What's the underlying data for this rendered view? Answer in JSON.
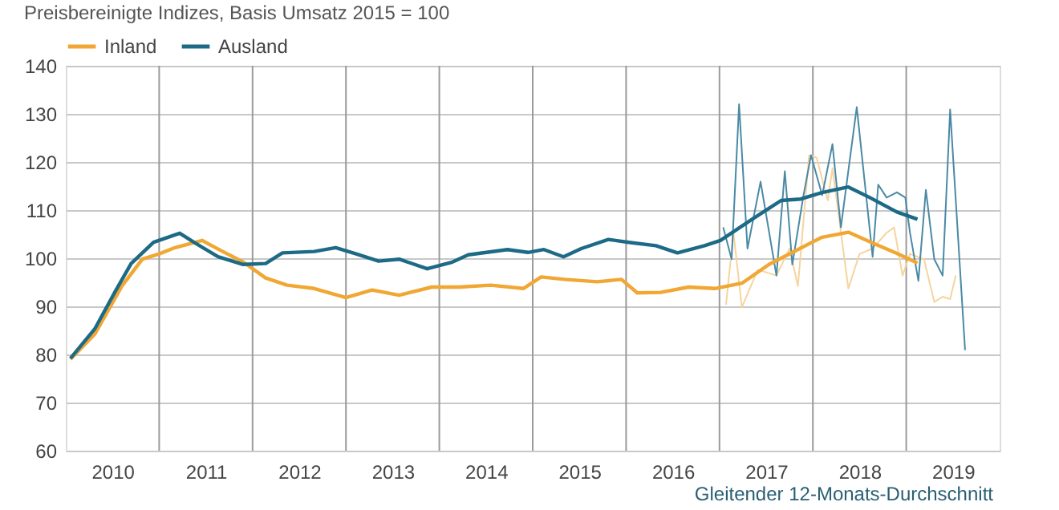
{
  "chart_data": {
    "type": "line",
    "title": "Preisbereinigte Indizes, Basis Umsatz 2015 = 100",
    "annotations": [
      "Gleitender 12-Monats-Durchschnitt"
    ],
    "legend": "top",
    "grid": true,
    "marker": "none",
    "line_style": "solid",
    "xlim": [
      2010,
      2020
    ],
    "xticks": [
      {
        "value": 2010.5,
        "label": "2010"
      },
      {
        "value": 2011.5,
        "label": "2011"
      },
      {
        "value": 2012.5,
        "label": "2012"
      },
      {
        "value": 2013.5,
        "label": "2013"
      },
      {
        "value": 2014.5,
        "label": "2014"
      },
      {
        "value": 2015.5,
        "label": "2015"
      },
      {
        "value": 2016.5,
        "label": "2016"
      },
      {
        "value": 2017.5,
        "label": "2017"
      },
      {
        "value": 2018.5,
        "label": "2018"
      },
      {
        "value": 2019.5,
        "label": "2019"
      },
      {
        "value": 2011,
        "label": null
      },
      {
        "value": 2012,
        "label": null
      },
      {
        "value": 2013,
        "label": null
      },
      {
        "value": 2014,
        "label": null
      },
      {
        "value": 2015,
        "label": null
      },
      {
        "value": 2016,
        "label": null
      },
      {
        "value": 2017,
        "label": null
      },
      {
        "value": 2018,
        "label": null
      },
      {
        "value": 2019,
        "label": null
      }
    ],
    "ylim": [
      60,
      140
    ],
    "yticks": [
      60,
      70,
      80,
      90,
      100,
      110,
      120,
      130,
      140
    ],
    "series": [
      {
        "color": "#f6d49e",
        "x": [
          2017.07,
          2017.15,
          2017.24,
          2017.41,
          2017.61,
          2017.75,
          2017.84,
          2017.96,
          2018.04,
          2018.16,
          2018.21,
          2018.38,
          2018.5,
          2018.64,
          2018.79,
          2018.87,
          2018.96,
          2019.04,
          2019.19,
          2019.3,
          2019.39,
          2019.47,
          2019.53
        ],
        "values": [
          90.3,
          105.3,
          89.8,
          97.6,
          96.4,
          102,
          94.2,
          121.4,
          120.9,
          112,
          118.7,
          93.7,
          100.9,
          102,
          105.3,
          106.4,
          96.4,
          100.9,
          99.8,
          90.9,
          92,
          91.5,
          96.4
        ]
      },
      {
        "color": "#4a8aa5",
        "x": [
          2017.04,
          2017.13,
          2017.21,
          2017.3,
          2017.44,
          2017.61,
          2017.7,
          2017.78,
          2017.9,
          2017.98,
          2018.1,
          2018.21,
          2018.3,
          2018.47,
          2018.64,
          2018.7,
          2018.79,
          2018.9,
          2018.99,
          2019.04,
          2019.13,
          2019.21,
          2019.3,
          2019.39,
          2019.47,
          2019.63
        ],
        "values": [
          106.4,
          99.8,
          132,
          102,
          115.9,
          96.4,
          118.1,
          98.7,
          113.1,
          121.4,
          113.1,
          123.7,
          106.4,
          131.4,
          100.3,
          115.3,
          112.6,
          113.7,
          112.6,
          105.3,
          95.3,
          114.2,
          99.8,
          96.4,
          130.9,
          80.9
        ]
      },
      {
        "name": "Inland",
        "color": "#f0a733",
        "x": [
          2010.05,
          2010.31,
          2010.6,
          2010.82,
          2011.0,
          2011.17,
          2011.46,
          2011.68,
          2011.9,
          2012.14,
          2012.37,
          2012.66,
          2013.0,
          2013.28,
          2013.57,
          2013.92,
          2014.21,
          2014.55,
          2014.9,
          2015.09,
          2015.34,
          2015.69,
          2015.95,
          2016.12,
          2016.37,
          2016.67,
          2016.95,
          2017.24,
          2017.53,
          2017.81,
          2018.09,
          2018.38,
          2018.61,
          2018.9,
          2019.12
        ],
        "values": [
          79,
          84.2,
          94.2,
          99.8,
          100.9,
          102.2,
          103.7,
          101.4,
          99.2,
          95.9,
          94.4,
          93.7,
          91.8,
          93.4,
          92.3,
          94,
          94,
          94.4,
          93.7,
          96.1,
          95.6,
          95.1,
          95.6,
          92.8,
          92.9,
          94,
          93.7,
          94.8,
          98.7,
          101.5,
          104.3,
          105.4,
          103.4,
          101,
          99
        ]
      },
      {
        "name": "Ausland",
        "color": "#1d6a86",
        "x": [
          2010.05,
          2010.31,
          2010.53,
          2010.7,
          2010.94,
          2011.22,
          2011.39,
          2011.63,
          2011.9,
          2012.14,
          2012.32,
          2012.66,
          2012.89,
          2013.11,
          2013.35,
          2013.57,
          2013.87,
          2014.14,
          2014.31,
          2014.73,
          2014.95,
          2015.12,
          2015.33,
          2015.52,
          2015.81,
          2016.03,
          2016.32,
          2016.55,
          2016.84,
          2017.01,
          2017.35,
          2017.66,
          2017.87,
          2018.09,
          2018.38,
          2018.61,
          2018.9,
          2019.12
        ],
        "values": [
          79.2,
          85.3,
          93.1,
          98.9,
          103.3,
          105.2,
          103.1,
          100.3,
          98.7,
          98.9,
          101.1,
          101.4,
          102.2,
          100.9,
          99.4,
          99.8,
          97.8,
          99.2,
          100.7,
          101.8,
          101.2,
          101.8,
          100.3,
          102,
          103.9,
          103.3,
          102.6,
          101.1,
          102.6,
          103.7,
          108.1,
          112,
          112.3,
          113.6,
          114.8,
          112.6,
          109.6,
          108.1
        ]
      }
    ]
  }
}
